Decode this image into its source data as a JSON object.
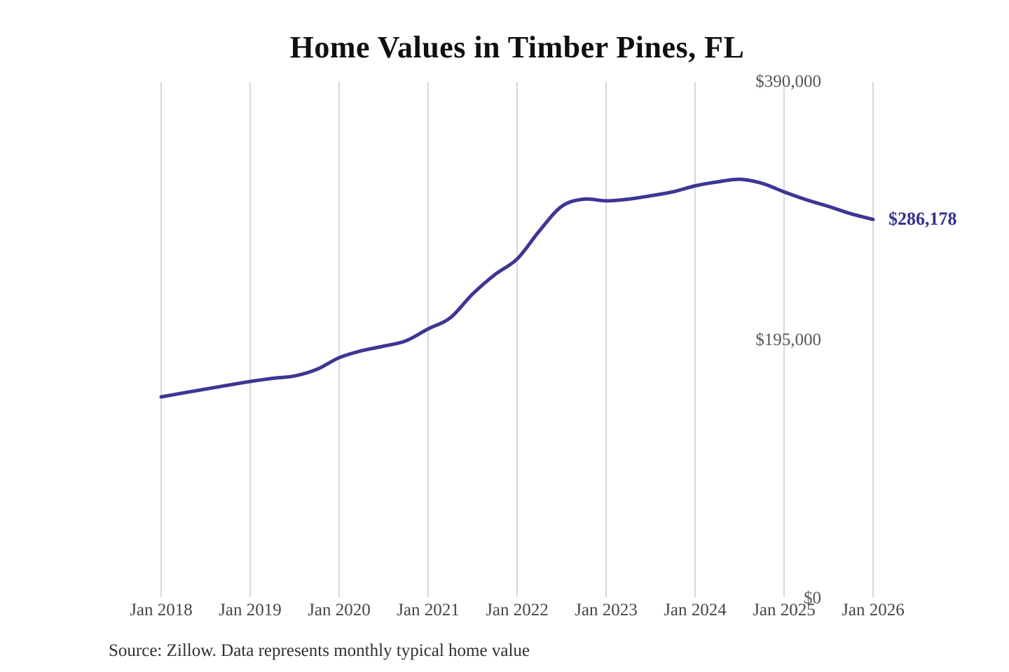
{
  "chart_data": {
    "type": "line",
    "title": "Home Values in Timber Pines, FL",
    "xlabel": "",
    "ylabel": "",
    "ylim": [
      0,
      390000
    ],
    "x_range_months": [
      "2018-01",
      "2026-01"
    ],
    "grid": "vertical-only",
    "legend": "none",
    "y_ticks": [
      {
        "label": "$390,000",
        "value": 390000
      },
      {
        "label": "$195,000",
        "value": 195000
      },
      {
        "label": "$0",
        "value": 0
      }
    ],
    "x_ticks": [
      {
        "label": "Jan 2018",
        "date": "2018-01"
      },
      {
        "label": "Jan 2019",
        "date": "2019-01"
      },
      {
        "label": "Jan 2020",
        "date": "2020-01"
      },
      {
        "label": "Jan 2021",
        "date": "2021-01"
      },
      {
        "label": "Jan 2022",
        "date": "2022-01"
      },
      {
        "label": "Jan 2023",
        "date": "2023-01"
      },
      {
        "label": "Jan 2024",
        "date": "2024-01"
      },
      {
        "label": "Jan 2025",
        "date": "2025-01"
      },
      {
        "label": "Jan 2026",
        "date": "2026-01"
      }
    ],
    "series": [
      {
        "name": "Monthly typical home value",
        "color": "#3e3693",
        "points": [
          {
            "date": "2018-01",
            "value": 152200
          },
          {
            "date": "2018-04",
            "value": 155200
          },
          {
            "date": "2018-07",
            "value": 158100
          },
          {
            "date": "2018-10",
            "value": 161000
          },
          {
            "date": "2019-01",
            "value": 163800
          },
          {
            "date": "2019-04",
            "value": 166200
          },
          {
            "date": "2019-07",
            "value": 168000
          },
          {
            "date": "2019-10",
            "value": 173000
          },
          {
            "date": "2020-01",
            "value": 181800
          },
          {
            "date": "2020-04",
            "value": 187000
          },
          {
            "date": "2020-07",
            "value": 190500
          },
          {
            "date": "2020-10",
            "value": 194500
          },
          {
            "date": "2021-01",
            "value": 203500
          },
          {
            "date": "2021-04",
            "value": 212000
          },
          {
            "date": "2021-07",
            "value": 229900
          },
          {
            "date": "2021-10",
            "value": 244500
          },
          {
            "date": "2022-01",
            "value": 256300
          },
          {
            "date": "2022-04",
            "value": 277500
          },
          {
            "date": "2022-07",
            "value": 296000
          },
          {
            "date": "2022-10",
            "value": 301500
          },
          {
            "date": "2023-01",
            "value": 300200
          },
          {
            "date": "2023-04",
            "value": 301500
          },
          {
            "date": "2023-07",
            "value": 304000
          },
          {
            "date": "2023-10",
            "value": 307000
          },
          {
            "date": "2024-01",
            "value": 311500
          },
          {
            "date": "2024-04",
            "value": 314500
          },
          {
            "date": "2024-07",
            "value": 316500
          },
          {
            "date": "2024-10",
            "value": 313500
          },
          {
            "date": "2025-01",
            "value": 307000
          },
          {
            "date": "2025-04",
            "value": 301000
          },
          {
            "date": "2025-07",
            "value": 296000
          },
          {
            "date": "2025-10",
            "value": 290500
          },
          {
            "date": "2026-01",
            "value": 286178
          }
        ]
      }
    ],
    "end_label": "$286,178",
    "end_label_color": "#33318f",
    "grid_color": "#cccccc",
    "source": "Source: Zillow. Data represents monthly typical home value"
  }
}
